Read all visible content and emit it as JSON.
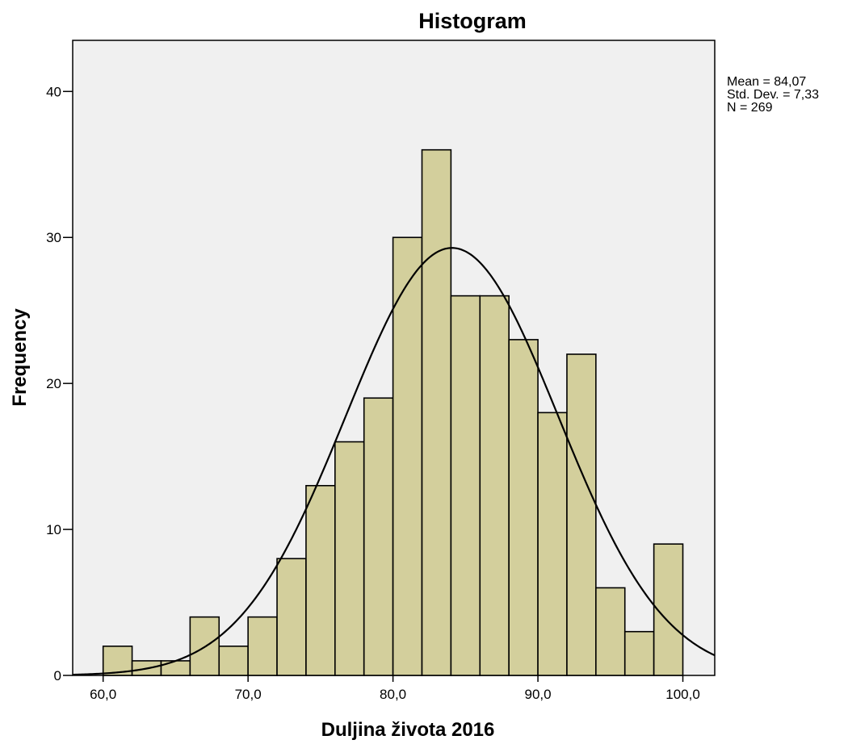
{
  "chart_data": {
    "type": "bar",
    "title": "Histogram",
    "xlabel": "Duljina života 2016",
    "ylabel": "Frequency",
    "bin_width": 2,
    "bins": [
      {
        "start": 60,
        "end": 62,
        "count": 2
      },
      {
        "start": 62,
        "end": 64,
        "count": 1
      },
      {
        "start": 64,
        "end": 66,
        "count": 1
      },
      {
        "start": 66,
        "end": 68,
        "count": 4
      },
      {
        "start": 68,
        "end": 70,
        "count": 2
      },
      {
        "start": 70,
        "end": 72,
        "count": 4
      },
      {
        "start": 72,
        "end": 74,
        "count": 8
      },
      {
        "start": 74,
        "end": 76,
        "count": 13
      },
      {
        "start": 76,
        "end": 78,
        "count": 16
      },
      {
        "start": 78,
        "end": 80,
        "count": 19
      },
      {
        "start": 80,
        "end": 82,
        "count": 30
      },
      {
        "start": 82,
        "end": 84,
        "count": 36
      },
      {
        "start": 84,
        "end": 86,
        "count": 26
      },
      {
        "start": 86,
        "end": 88,
        "count": 26
      },
      {
        "start": 88,
        "end": 90,
        "count": 23
      },
      {
        "start": 90,
        "end": 92,
        "count": 18
      },
      {
        "start": 92,
        "end": 94,
        "count": 22
      },
      {
        "start": 94,
        "end": 96,
        "count": 6
      },
      {
        "start": 96,
        "end": 98,
        "count": 3
      },
      {
        "start": 98,
        "end": 100,
        "count": 9
      }
    ],
    "xlim": [
      57.9,
      102.2
    ],
    "ylim": [
      0,
      43.5
    ],
    "x_ticks": [
      {
        "value": 60,
        "label": "60,0"
      },
      {
        "value": 70,
        "label": "70,0"
      },
      {
        "value": 80,
        "label": "80,0"
      },
      {
        "value": 90,
        "label": "90,0"
      },
      {
        "value": 100,
        "label": "100,0"
      }
    ],
    "y_ticks": [
      {
        "value": 0,
        "label": "0"
      },
      {
        "value": 10,
        "label": "10"
      },
      {
        "value": 20,
        "label": "20"
      },
      {
        "value": 30,
        "label": "30"
      },
      {
        "value": 40,
        "label": "40"
      }
    ],
    "normal_curve": {
      "mean": 84.07,
      "std": 7.33,
      "n": 269
    },
    "stats_text": [
      "Mean = 84,07",
      "Std. Dev. = 7,33",
      "N = 269"
    ],
    "grid": false,
    "colors": {
      "bar_fill": "#d3cf9c",
      "bar_stroke": "#000000",
      "plot_background": "#f0f0f0",
      "curve": "#000000"
    }
  }
}
